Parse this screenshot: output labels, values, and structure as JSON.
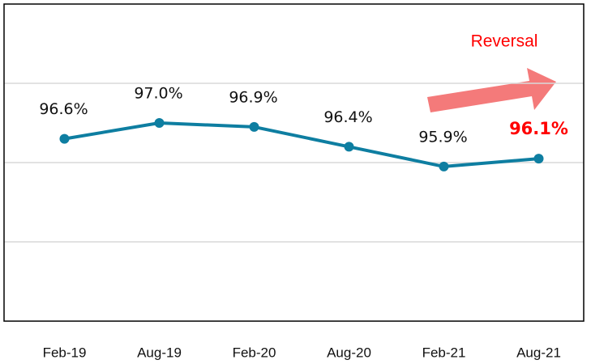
{
  "chart_data": {
    "type": "line",
    "categories": [
      "Feb-19",
      "Aug-19",
      "Feb-20",
      "Aug-20",
      "Feb-21",
      "Aug-21"
    ],
    "series": [
      {
        "color": "#0e7ea1",
        "values": [
          96.6,
          97.0,
          96.9,
          96.4,
          95.9,
          96.1
        ],
        "value_labels": [
          "96.6%",
          "97.0%",
          "96.9%",
          "96.4%",
          "95.9%",
          "96.1%"
        ]
      }
    ],
    "ylim": [
      92,
      100
    ],
    "yticks": [
      92,
      94,
      96,
      98,
      100
    ],
    "grid": true,
    "highlight_color": "#ff0000",
    "annotation": "Reversal"
  }
}
